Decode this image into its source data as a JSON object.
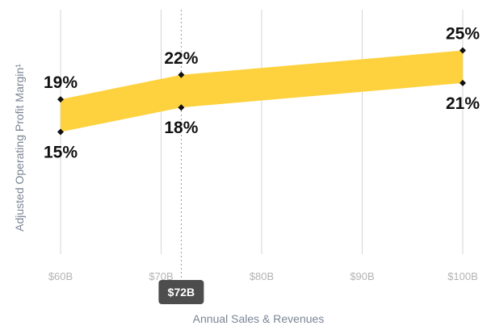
{
  "chart_data": {
    "type": "area",
    "xlabel": "Annual Sales & Revenues",
    "ylabel": "Adjusted Operating Profit Margin¹",
    "xlim": [
      60,
      100
    ],
    "ylim": [
      0,
      30
    ],
    "x_ticks": [
      60,
      70,
      80,
      90,
      100
    ],
    "x_tick_labels": [
      "$60B",
      "$70B",
      "$80B",
      "$90B",
      "$100B"
    ],
    "grid": "vertical",
    "series": [
      {
        "x": [
          60,
          72,
          100
        ],
        "lower": [
          15,
          18,
          21
        ],
        "upper": [
          19,
          22,
          25
        ]
      }
    ],
    "point_labels": [
      {
        "x": 60,
        "y": 19,
        "text": "19%",
        "position": "above"
      },
      {
        "x": 60,
        "y": 15,
        "text": "15%",
        "position": "below"
      },
      {
        "x": 72,
        "y": 22,
        "text": "22%",
        "position": "above"
      },
      {
        "x": 72,
        "y": 18,
        "text": "18%",
        "position": "below"
      },
      {
        "x": 100,
        "y": 25,
        "text": "25%",
        "position": "above"
      },
      {
        "x": 100,
        "y": 21,
        "text": "21%",
        "position": "below"
      }
    ],
    "marker": {
      "x": 72,
      "label": "$72B"
    },
    "colors": {
      "band": "#fdd23e",
      "grid": "#d6d6d6",
      "marker_line": "#9a9a9a",
      "badge": "#4d4d4d",
      "point": "#111111"
    }
  }
}
